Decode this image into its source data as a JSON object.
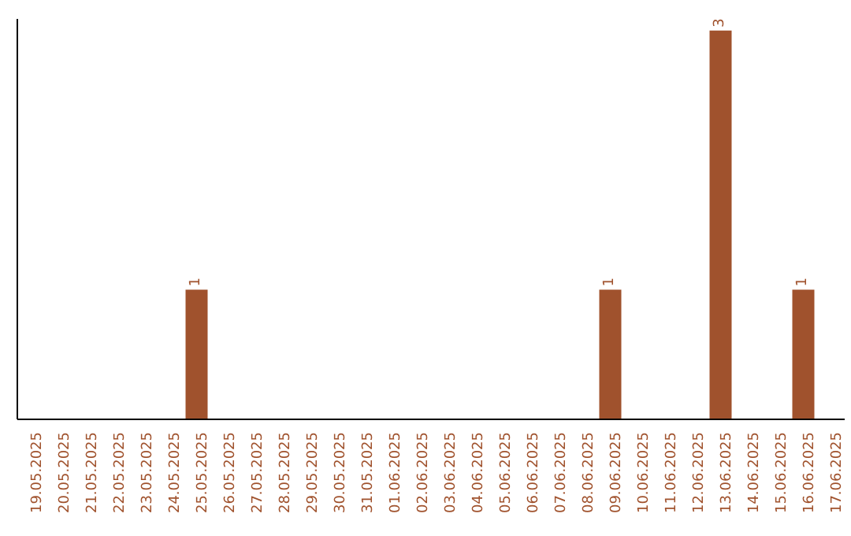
{
  "chart_data": {
    "type": "bar",
    "categories": [
      "19.05.2025",
      "20.05.2025",
      "21.05.2025",
      "22.05.2025",
      "23.05.2025",
      "24.05.2025",
      "25.05.2025",
      "26.05.2025",
      "27.05.2025",
      "28.05.2025",
      "29.05.2025",
      "30.05.2025",
      "31.05.2025",
      "01.06.2025",
      "02.06.2025",
      "03.06.2025",
      "04.06.2025",
      "05.06.2025",
      "06.06.2025",
      "07.06.2025",
      "08.06.2025",
      "09.06.2025",
      "10.06.2025",
      "11.06.2025",
      "12.06.2025",
      "13.06.2025",
      "14.06.2025",
      "15.06.2025",
      "16.06.2025",
      "17.06.2025"
    ],
    "series": [
      {
        "color": "#a0522d",
        "values": [
          0,
          0,
          0,
          0,
          0,
          0,
          1,
          0,
          0,
          0,
          0,
          0,
          0,
          0,
          0,
          0,
          0,
          0,
          0,
          0,
          0,
          1,
          0,
          0,
          0,
          3,
          0,
          0,
          1,
          0
        ],
        "value_labels": [
          null,
          null,
          null,
          null,
          null,
          null,
          "1",
          null,
          null,
          null,
          null,
          null,
          null,
          null,
          null,
          null,
          null,
          null,
          null,
          null,
          null,
          "1",
          null,
          null,
          null,
          "3",
          null,
          null,
          "1",
          null
        ]
      }
    ],
    "tick_labels": "x",
    "grid": false,
    "legend": false
  }
}
